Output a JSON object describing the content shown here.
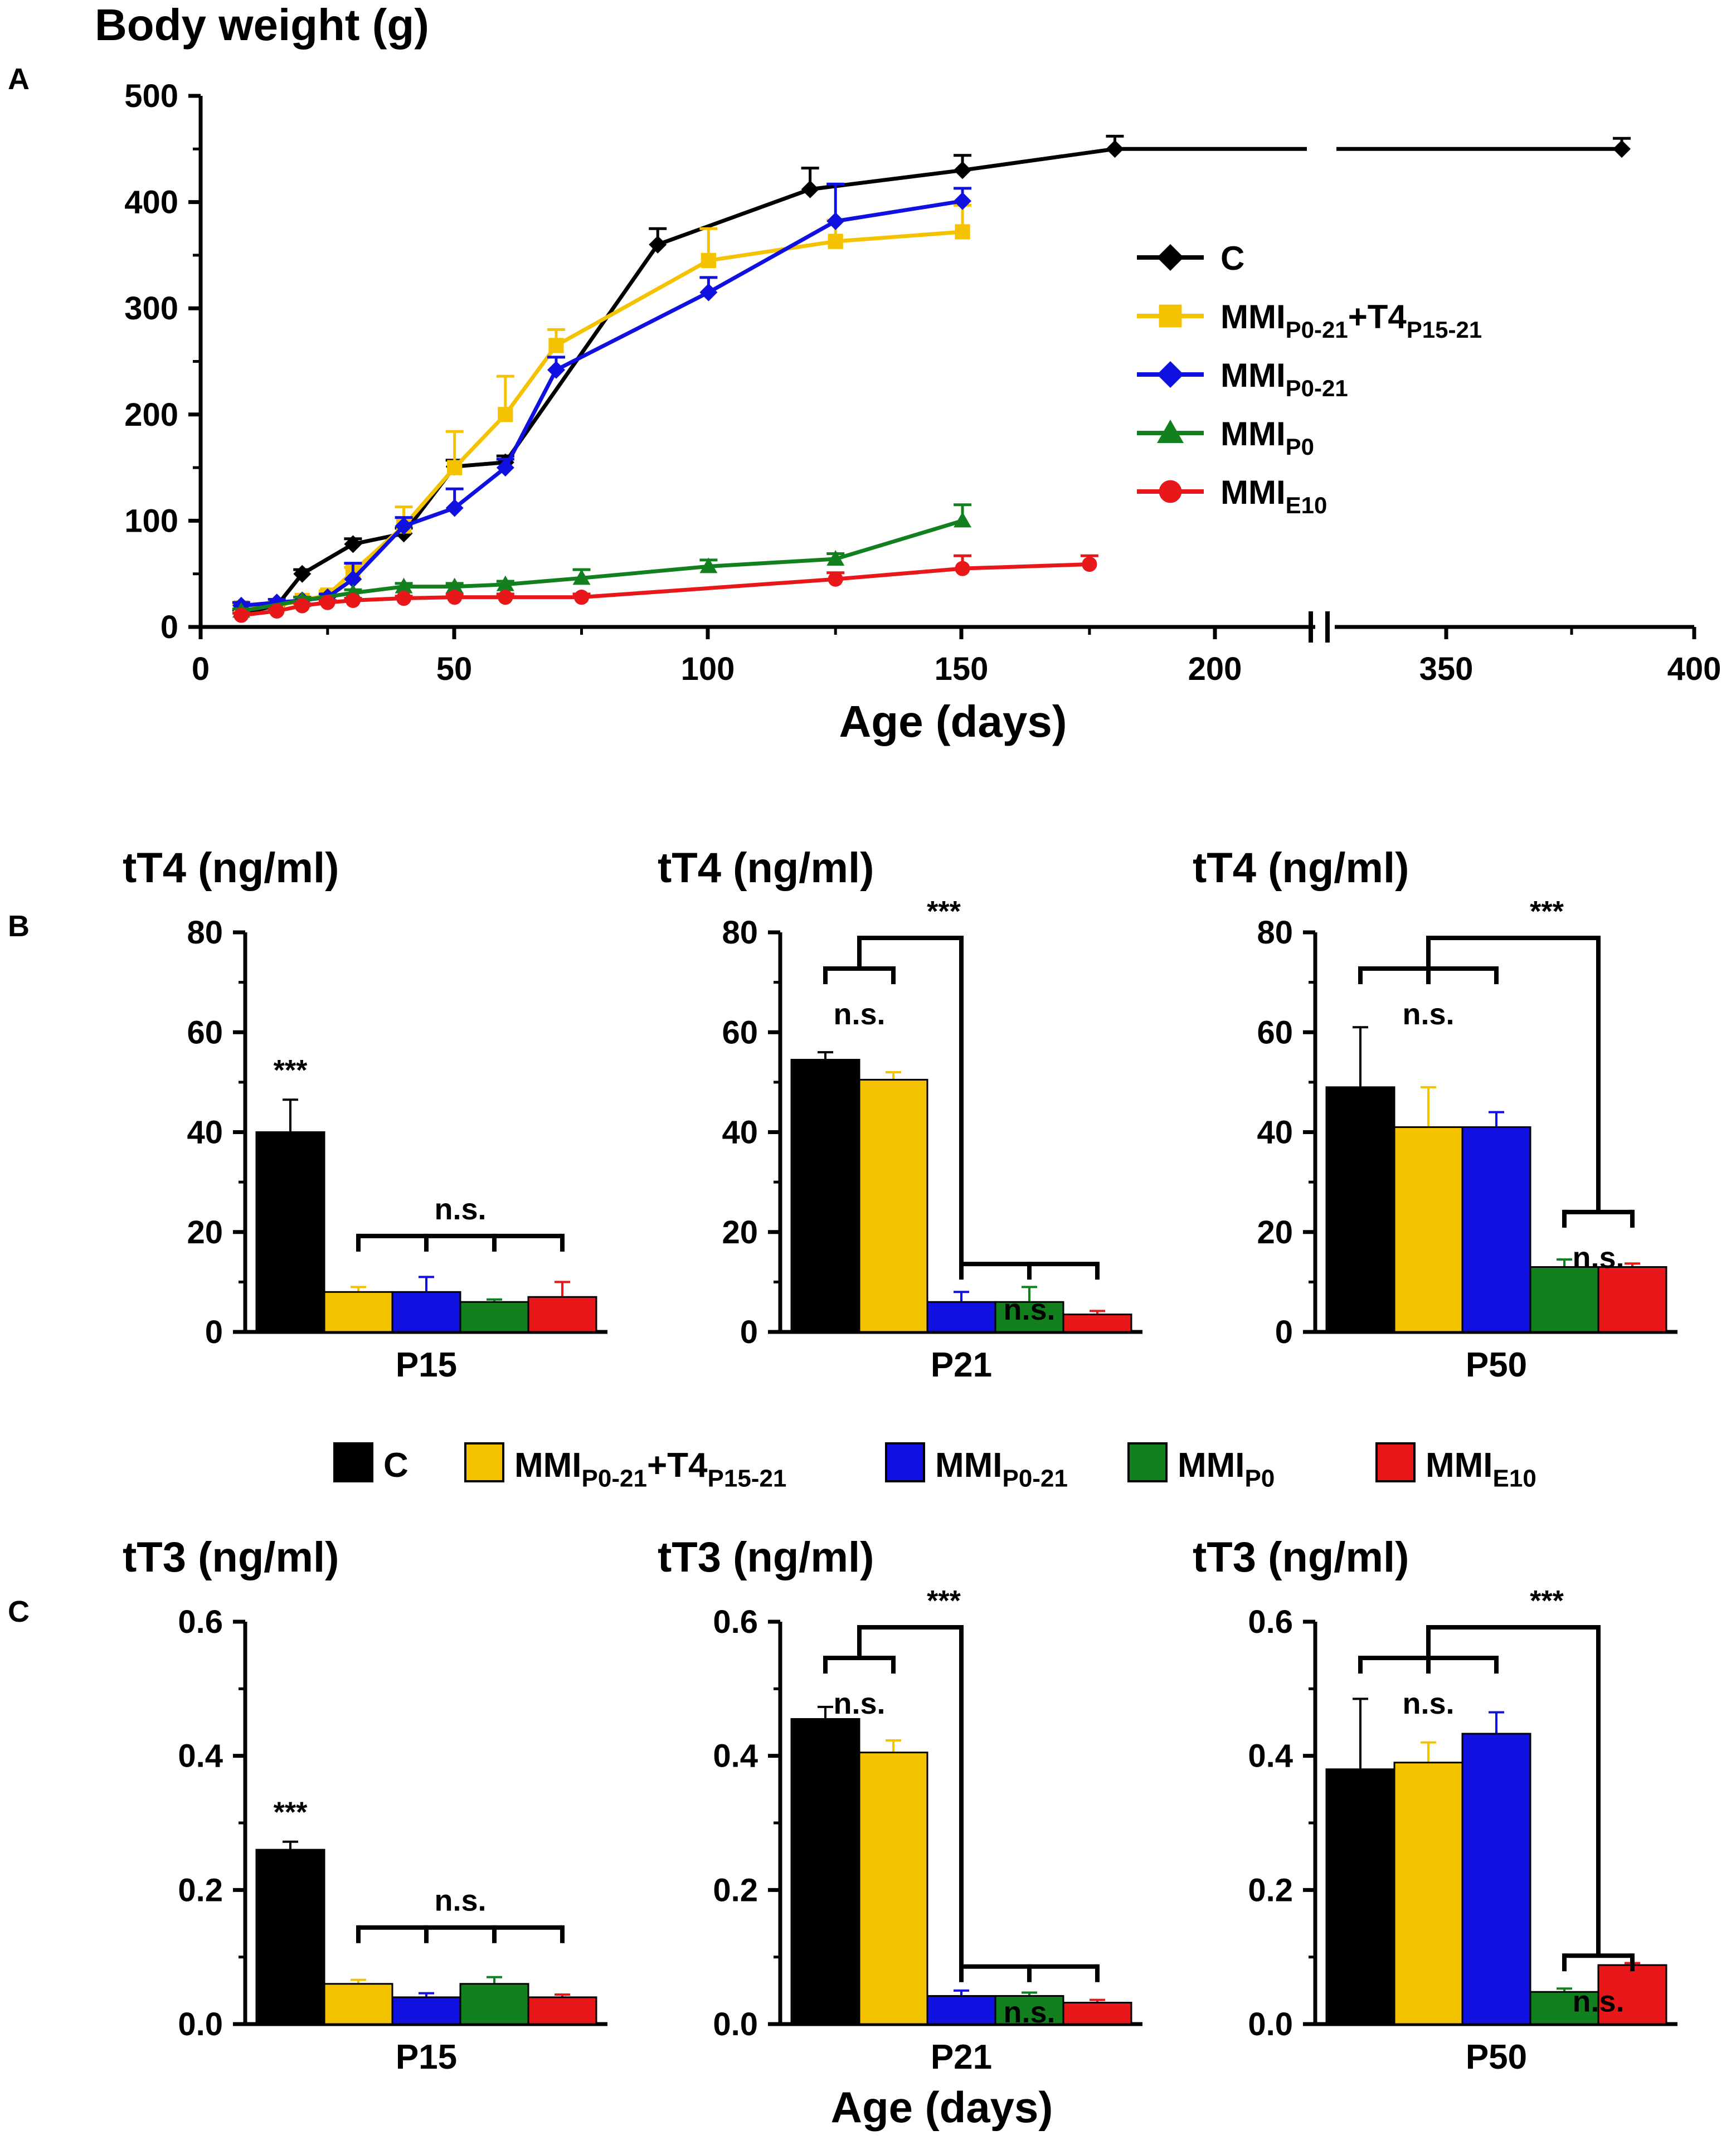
{
  "panel_labels": {
    "a": "A",
    "b": "B",
    "c": "C"
  },
  "colors": {
    "C": "#000000",
    "MMI_P0-21_T4": "#F5C200",
    "MMI_P0-21": "#1010E0",
    "MMI_P0": "#12801F",
    "MMI_E10": "#E8181A"
  },
  "legend": [
    {
      "key": "C",
      "base": "C",
      "sub": "",
      "mid": "",
      "sub2": ""
    },
    {
      "key": "MMI_P0-21_T4",
      "base": "MMI",
      "sub": "P0-21",
      "mid": "+T4",
      "sub2": "P15-21"
    },
    {
      "key": "MMI_P0-21",
      "base": "MMI",
      "sub": "P0-21",
      "mid": "",
      "sub2": ""
    },
    {
      "key": "MMI_P0",
      "base": "MMI",
      "sub": "P0",
      "mid": "",
      "sub2": ""
    },
    {
      "key": "MMI_E10",
      "base": "MMI",
      "sub": "E10",
      "mid": "",
      "sub2": ""
    }
  ],
  "chart_data": [
    {
      "id": "A",
      "type": "line",
      "title": "Body weight (g)",
      "xlabel": "Age (days)",
      "ylabel": "Body weight (g)",
      "ylim": [
        0,
        500
      ],
      "yticks": [
        "0",
        "100",
        "200",
        "300",
        "400",
        "500"
      ],
      "xticks": [
        "0",
        "50",
        "100",
        "150",
        "200",
        "350",
        "400"
      ],
      "x_axis_note": "broken axis between ~220 and ~300 days",
      "series": [
        {
          "name": "C",
          "key": "C",
          "marker": "diamond",
          "points": [
            [
              8,
              13
            ],
            [
              15,
              20
            ],
            [
              20,
              50
            ],
            [
              30,
              78
            ],
            [
              40,
              88
            ],
            [
              50,
              151
            ],
            [
              60,
              155
            ],
            [
              90,
              360
            ],
            [
              120,
              412
            ],
            [
              150,
              430
            ],
            [
              180,
              450
            ],
            [
              380,
              450
            ]
          ],
          "err": [
            3,
            3,
            4,
            5,
            5,
            6,
            6,
            15,
            20,
            14,
            12,
            10
          ]
        },
        {
          "name": "MMIP0-21+T4P15-21",
          "key": "MMI_P0-21_T4",
          "marker": "square",
          "points": [
            [
              8,
              18
            ],
            [
              15,
              20
            ],
            [
              20,
              25
            ],
            [
              25,
              30
            ],
            [
              30,
              52
            ],
            [
              40,
              95
            ],
            [
              50,
              150
            ],
            [
              60,
              200
            ],
            [
              70,
              265
            ],
            [
              100,
              345
            ],
            [
              125,
              363
            ],
            [
              150,
              372
            ]
          ],
          "err": [
            3,
            3,
            3,
            4,
            4,
            18,
            34,
            36,
            15,
            30,
            20,
            25
          ]
        },
        {
          "name": "MMIP0-21",
          "key": "MMI_P0-21",
          "marker": "diamond",
          "points": [
            [
              8,
              20
            ],
            [
              15,
              23
            ],
            [
              20,
              25
            ],
            [
              25,
              28
            ],
            [
              30,
              45
            ],
            [
              40,
              95
            ],
            [
              50,
              112
            ],
            [
              60,
              150
            ],
            [
              70,
              242
            ],
            [
              100,
              315
            ],
            [
              125,
              382
            ],
            [
              150,
              401
            ]
          ],
          "err": [
            3,
            3,
            3,
            3,
            15,
            8,
            18,
            8,
            12,
            14,
            35,
            12
          ]
        },
        {
          "name": "MMIP0",
          "key": "MMI_P0",
          "marker": "triangle",
          "points": [
            [
              8,
              15
            ],
            [
              20,
              25
            ],
            [
              30,
              32
            ],
            [
              40,
              38
            ],
            [
              50,
              38
            ],
            [
              60,
              40
            ],
            [
              75,
              46
            ],
            [
              100,
              57
            ],
            [
              125,
              64
            ],
            [
              150,
              100
            ]
          ],
          "err": [
            2,
            3,
            3,
            3,
            3,
            3,
            8,
            6,
            5,
            15
          ]
        },
        {
          "name": "MMIE10",
          "key": "MMI_E10",
          "marker": "circle",
          "points": [
            [
              8,
              11
            ],
            [
              15,
              15
            ],
            [
              20,
              20
            ],
            [
              25,
              23
            ],
            [
              30,
              25
            ],
            [
              40,
              27
            ],
            [
              50,
              28
            ],
            [
              60,
              28
            ],
            [
              75,
              28
            ],
            [
              125,
              45
            ],
            [
              150,
              55
            ],
            [
              175,
              59
            ]
          ],
          "err": [
            2,
            2,
            2,
            2,
            2,
            2,
            3,
            3,
            3,
            6,
            12,
            8
          ]
        }
      ]
    },
    {
      "id": "B1",
      "type": "bar",
      "title": "tT4 (ng/ml)",
      "xlabel": "P15",
      "ylim": [
        0,
        80
      ],
      "yticks": [
        "0",
        "20",
        "40",
        "60",
        "80"
      ],
      "values": [
        40,
        8,
        8,
        6,
        7
      ],
      "err": [
        6.5,
        1,
        3,
        0.5,
        3
      ],
      "sig": [
        {
          "text": "***",
          "type": "above_first"
        },
        {
          "text": "n.s.",
          "type": "comb",
          "from": 1,
          "to": 4
        }
      ]
    },
    {
      "id": "B2",
      "type": "bar",
      "title": "tT4 (ng/ml)",
      "xlabel": "P21",
      "ylim": [
        0,
        80
      ],
      "yticks": [
        "0",
        "20",
        "40",
        "60",
        "80"
      ],
      "values": [
        54.5,
        50.5,
        6,
        6,
        3.5
      ],
      "err": [
        1.5,
        1.5,
        2,
        3,
        0.7
      ],
      "sig": [
        {
          "text": "n.s.",
          "type": "comb",
          "from": 0,
          "to": 1
        },
        {
          "text": "n.s.",
          "type": "comb",
          "from": 2,
          "to": 4
        },
        {
          "text": "***",
          "type": "link"
        }
      ]
    },
    {
      "id": "B3",
      "type": "bar",
      "title": "tT4 (ng/ml)",
      "xlabel": "P50",
      "ylim": [
        0,
        80
      ],
      "yticks": [
        "0",
        "20",
        "40",
        "60",
        "80"
      ],
      "values": [
        49,
        41,
        41,
        13,
        13
      ],
      "err": [
        12,
        8,
        3,
        1.5,
        0.7
      ],
      "sig": [
        {
          "text": "n.s.",
          "type": "comb",
          "from": 0,
          "to": 2
        },
        {
          "text": "n.s.",
          "type": "comb",
          "from": 3,
          "to": 4
        },
        {
          "text": "***",
          "type": "link"
        }
      ]
    },
    {
      "id": "C1",
      "type": "bar",
      "title": "tT3 (ng/ml)",
      "xlabel": "P15",
      "ylim": [
        0,
        0.6
      ],
      "yticks": [
        "0.0",
        "0.2",
        "0.4",
        "0.6"
      ],
      "values": [
        0.26,
        0.06,
        0.04,
        0.06,
        0.04
      ],
      "err": [
        0.012,
        0.006,
        0.006,
        0.01,
        0.004
      ],
      "sig": [
        {
          "text": "***",
          "type": "above_first"
        },
        {
          "text": "n.s.",
          "type": "comb",
          "from": 1,
          "to": 4
        }
      ]
    },
    {
      "id": "C2",
      "type": "bar",
      "title": "tT3 (ng/ml)",
      "xlabel": "P21",
      "ylim": [
        0,
        0.6
      ],
      "yticks": [
        "0.0",
        "0.2",
        "0.4",
        "0.6"
      ],
      "values": [
        0.455,
        0.405,
        0.042,
        0.042,
        0.032
      ],
      "err": [
        0.018,
        0.018,
        0.008,
        0.005,
        0.004
      ],
      "sig": [
        {
          "text": "n.s.",
          "type": "comb",
          "from": 0,
          "to": 1
        },
        {
          "text": "n.s.",
          "type": "comb",
          "from": 2,
          "to": 4
        },
        {
          "text": "***",
          "type": "link"
        }
      ]
    },
    {
      "id": "C3",
      "type": "bar",
      "title": "tT3 (ng/ml)",
      "xlabel": "P50",
      "ylim": [
        0,
        0.6
      ],
      "yticks": [
        "0.0",
        "0.2",
        "0.4",
        "0.6"
      ],
      "values": [
        0.38,
        0.39,
        0.433,
        0.048,
        0.088
      ],
      "err": [
        0.105,
        0.03,
        0.032,
        0.005,
        0.003
      ],
      "sig": [
        {
          "text": "n.s.",
          "type": "comb",
          "from": 0,
          "to": 2
        },
        {
          "text": "n.s.",
          "type": "comb",
          "from": 3,
          "to": 4
        },
        {
          "text": "***",
          "type": "link"
        }
      ]
    }
  ],
  "bottom_xlabel": "Age (days)"
}
